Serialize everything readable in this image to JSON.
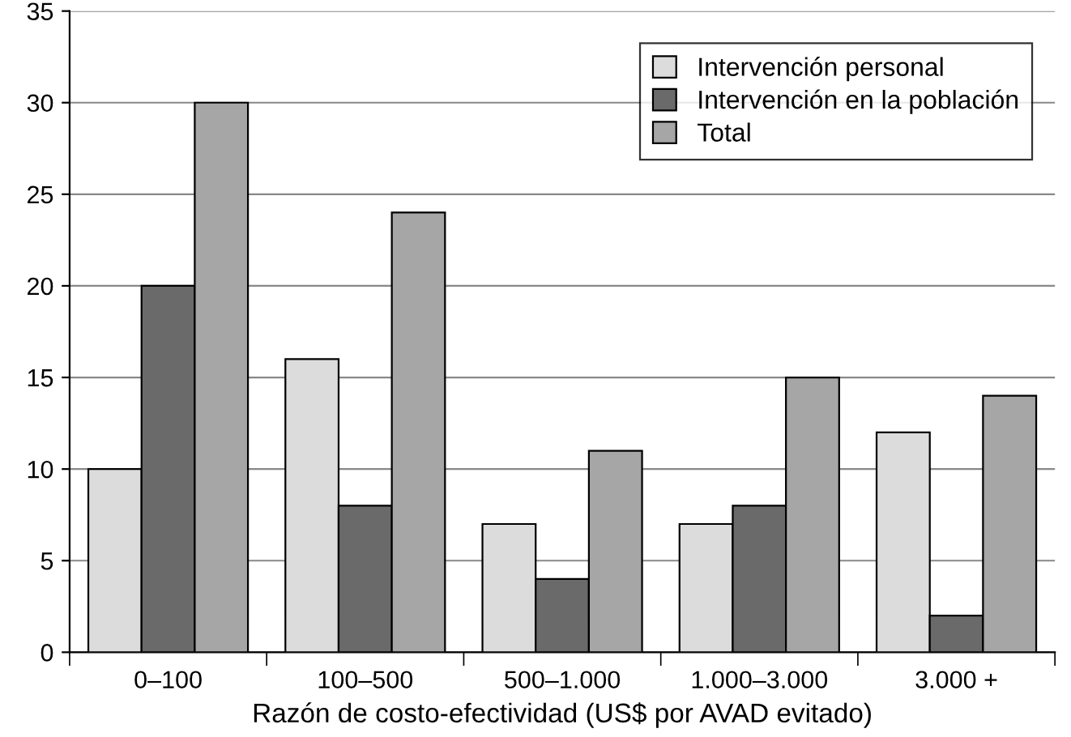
{
  "chart_data": {
    "type": "bar",
    "xlabel": "Razón de costo-efectividad (US$ por AVAD evitado)",
    "categories": [
      "0–100",
      "100–500",
      "500–1.000",
      "1.000–3.000",
      "3.000 +"
    ],
    "series": [
      {
        "name": "Intervención personal",
        "color": "#dcdcdc",
        "values": [
          10,
          16,
          7,
          7,
          12
        ]
      },
      {
        "name": "Intervención en la población",
        "color": "#6a6a6a",
        "values": [
          20,
          8,
          4,
          8,
          2
        ]
      },
      {
        "name": "Total",
        "color": "#a6a6a6",
        "values": [
          30,
          24,
          11,
          15,
          14
        ]
      }
    ],
    "ylim": [
      0,
      35
    ],
    "yticks": [
      0,
      5,
      10,
      15,
      20,
      25,
      30,
      35
    ],
    "grid": "y",
    "legend": "top right"
  }
}
